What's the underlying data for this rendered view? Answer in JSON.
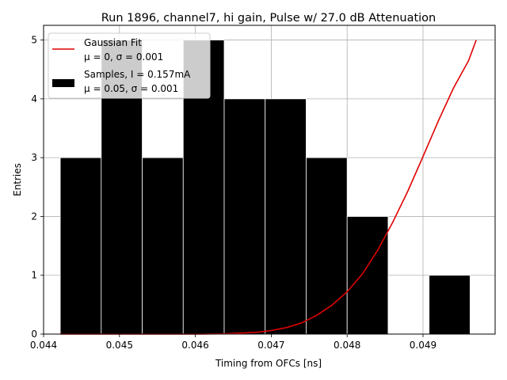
{
  "chart_data": {
    "type": "bar",
    "title": "Run 1896, channel7, hi gain, Pulse w/ 27.0 dB Attenuation",
    "xlabel": "Timing from OFCs [ns]",
    "ylabel": "Entries",
    "xlim": [
      0.044,
      0.04995
    ],
    "ylim": [
      0,
      5.25
    ],
    "grid": true,
    "legend_position": "top-left",
    "x_ticks": [
      0.044,
      0.045,
      0.046,
      0.047,
      0.048,
      0.049
    ],
    "x_tick_labels": [
      "0.044",
      "0.045",
      "0.046",
      "0.047",
      "0.048",
      "0.049"
    ],
    "y_ticks": [
      0,
      1,
      2,
      3,
      4,
      5
    ],
    "y_tick_labels": [
      "0",
      "1",
      "2",
      "3",
      "4",
      "5"
    ],
    "bin_edges": [
      0.04422,
      0.04476,
      0.0453,
      0.04584,
      0.04638,
      0.04692,
      0.04746,
      0.048,
      0.04854,
      0.04908,
      0.04962
    ],
    "counts": [
      3,
      5,
      3,
      5,
      4,
      4,
      3,
      2,
      0,
      1
    ],
    "fit_curve": {
      "x": [
        0.04422,
        0.046,
        0.0464,
        0.0468,
        0.047,
        0.0472,
        0.0474,
        0.0476,
        0.0478,
        0.048,
        0.0482,
        0.0484,
        0.0486,
        0.0488,
        0.049,
        0.0492,
        0.0494,
        0.0496,
        0.0497
      ],
      "y": [
        0.0,
        0.0,
        0.005,
        0.03,
        0.06,
        0.11,
        0.19,
        0.32,
        0.49,
        0.72,
        1.02,
        1.42,
        1.9,
        2.43,
        3.02,
        3.62,
        4.18,
        4.65,
        5.0
      ]
    },
    "series": [
      {
        "name": "Gaussian Fit",
        "stats": "μ = 0, σ = 0.001",
        "color": "#e00000",
        "kind": "line"
      },
      {
        "name": "Samples, I = 0.157mA",
        "stats": "μ = 0.05, σ = 0.001",
        "color": "#000000",
        "kind": "bar"
      }
    ]
  }
}
